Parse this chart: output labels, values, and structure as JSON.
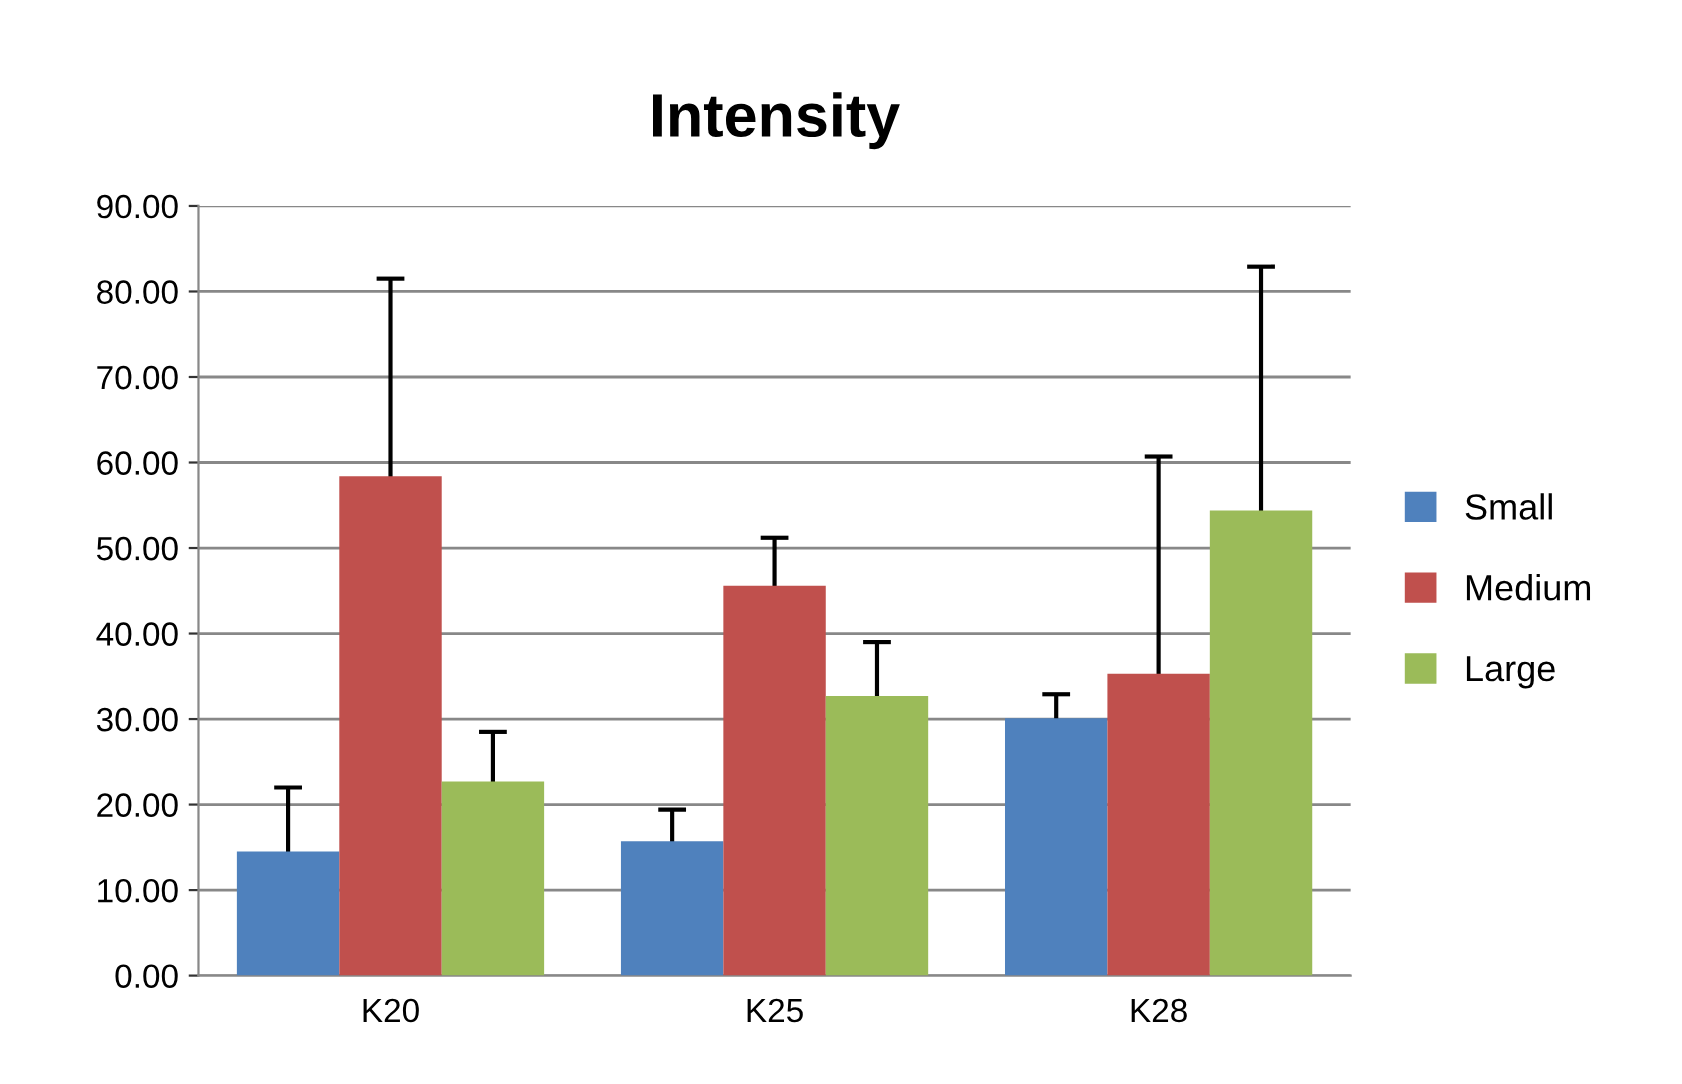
{
  "chart_data": {
    "type": "bar",
    "title": "Intensity",
    "categories": [
      "K20",
      "K25",
      "K28"
    ],
    "series": [
      {
        "name": "Small",
        "color": "#4f81bd",
        "values": [
          14.5,
          15.7,
          30.1
        ],
        "errors": [
          7.5,
          3.7,
          2.8
        ]
      },
      {
        "name": "Medium",
        "color": "#c0504d",
        "values": [
          58.4,
          45.6,
          35.3
        ],
        "errors": [
          23.1,
          5.6,
          25.4
        ]
      },
      {
        "name": "Large",
        "color": "#9bbb59",
        "values": [
          22.7,
          32.7,
          54.4
        ],
        "errors": [
          5.8,
          6.3,
          28.5
        ]
      }
    ],
    "ylim": [
      0,
      90
    ],
    "yticks": [
      {
        "value": 0,
        "label": "0.00"
      },
      {
        "value": 10,
        "label": "10.00"
      },
      {
        "value": 20,
        "label": "20.00"
      },
      {
        "value": 30,
        "label": "30.00"
      },
      {
        "value": 40,
        "label": "40.00"
      },
      {
        "value": 50,
        "label": "50.00"
      },
      {
        "value": 60,
        "label": "60.00"
      },
      {
        "value": 70,
        "label": "70.00"
      },
      {
        "value": 80,
        "label": "80.00"
      },
      {
        "value": 90,
        "label": "90.00"
      }
    ],
    "grid": "y",
    "legend": "right"
  }
}
